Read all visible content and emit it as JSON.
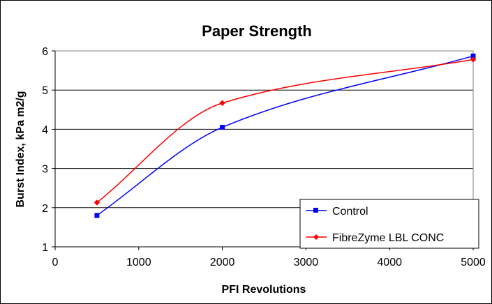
{
  "chart_data": {
    "type": "line",
    "title": "Paper Strength",
    "xlabel": "PFI Revolutions",
    "ylabel": "Burst Index, kPa m2/g",
    "xlim": [
      0,
      5000
    ],
    "ylim": [
      1,
      6
    ],
    "x_ticks": [
      0,
      1000,
      2000,
      3000,
      4000,
      5000
    ],
    "y_ticks": [
      1,
      2,
      3,
      4,
      5,
      6
    ],
    "grid": "horizontal",
    "legend_position": "bottom-right",
    "smoothed": true,
    "series": [
      {
        "name": "Control",
        "color": "#0000ff",
        "marker": "square",
        "x": [
          500,
          2000,
          5000
        ],
        "values": [
          1.8,
          4.05,
          5.87
        ]
      },
      {
        "name": "FibreZyme LBL CONC",
        "color": "#ff0000",
        "marker": "diamond",
        "x": [
          500,
          2000,
          5000
        ],
        "values": [
          2.13,
          4.67,
          5.78
        ]
      }
    ]
  }
}
